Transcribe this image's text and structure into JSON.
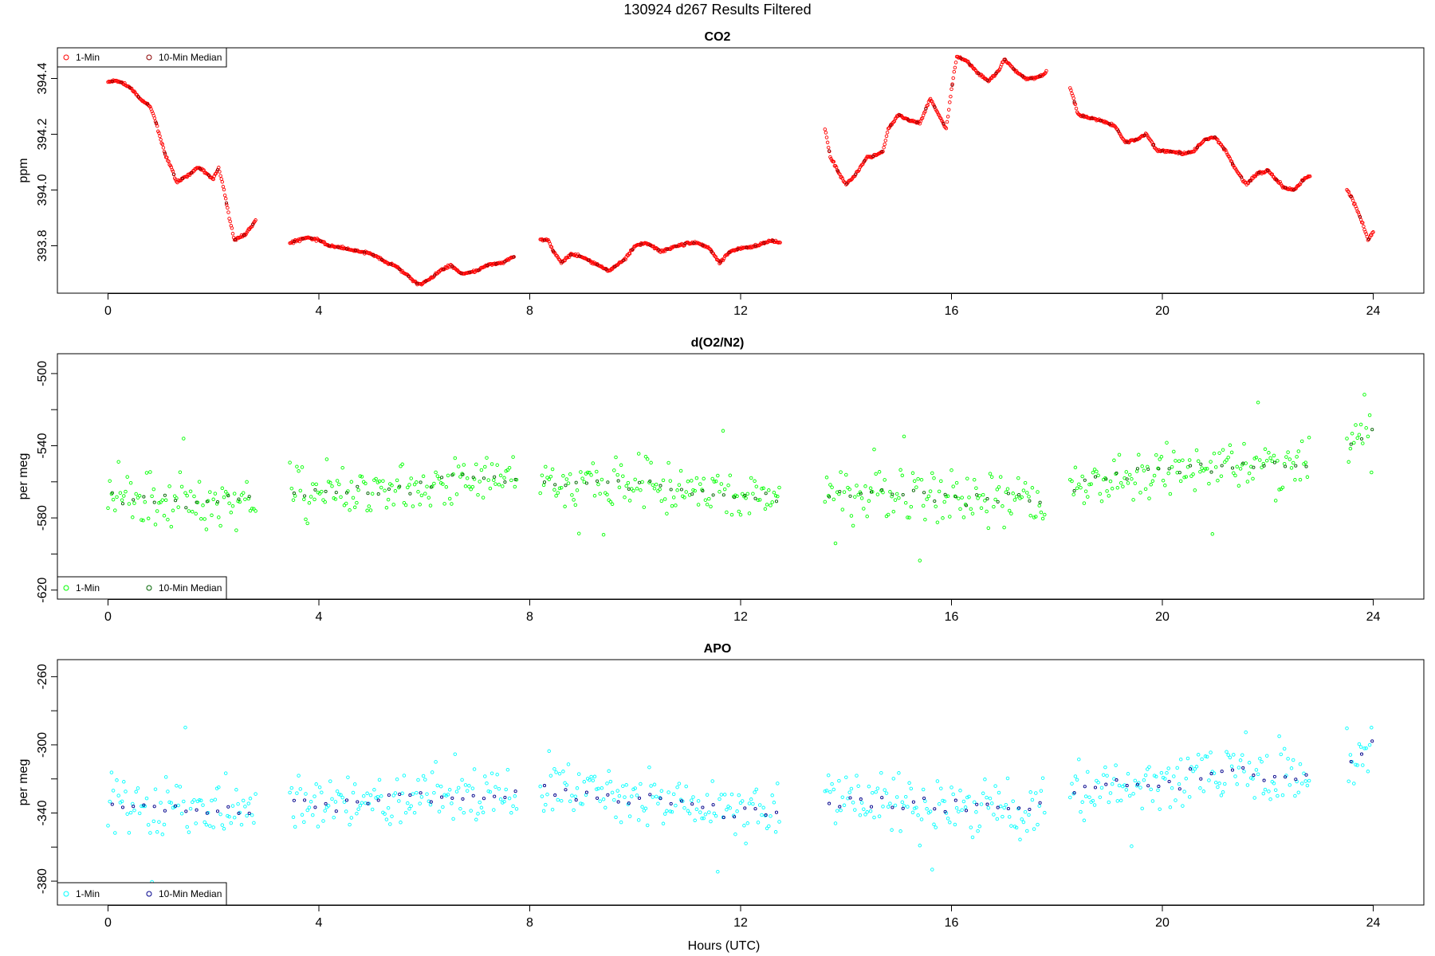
{
  "figure_title": "130924    d267    Results Filtered",
  "x_axis_label": "Hours (UTC)",
  "chart_data": [
    {
      "type": "scatter",
      "title": "CO2",
      "ylabel": "ppm",
      "xlim": [
        -0.96,
        24.96
      ],
      "ylim": [
        393.63,
        394.51
      ],
      "xticks": [
        0,
        4,
        8,
        12,
        16,
        20,
        24
      ],
      "yticks": [
        393.8,
        394.0,
        394.2,
        394.4
      ],
      "ytick_labels": [
        "393.8",
        "394.0",
        "394.2",
        "394.4"
      ],
      "legend": {
        "position": "top-left",
        "entries": [
          "1-Min",
          "10-Min Median"
        ]
      },
      "series": [
        {
          "name": "1-Min",
          "color": "#ff0000",
          "anchors": [
            [
              0.0,
              394.39
            ],
            [
              0.2,
              394.39
            ],
            [
              0.4,
              394.37
            ],
            [
              0.6,
              394.33
            ],
            [
              0.8,
              394.3
            ],
            [
              0.9,
              394.25
            ],
            [
              1.0,
              394.18
            ],
            [
              1.1,
              394.12
            ],
            [
              1.2,
              394.08
            ],
            [
              1.3,
              394.03
            ],
            [
              1.5,
              394.05
            ],
            [
              1.7,
              394.08
            ],
            [
              1.8,
              394.07
            ],
            [
              2.0,
              394.04
            ],
            [
              2.1,
              394.08
            ],
            [
              2.2,
              394.0
            ],
            [
              2.3,
              393.9
            ],
            [
              2.4,
              393.82
            ],
            [
              2.6,
              393.84
            ],
            [
              2.8,
              393.89
            ],
            [
              3.45,
              393.81
            ],
            [
              3.6,
              393.82
            ],
            [
              3.8,
              393.83
            ],
            [
              4.0,
              393.82
            ],
            [
              4.2,
              393.8
            ],
            [
              4.5,
              393.79
            ],
            [
              4.8,
              393.78
            ],
            [
              5.0,
              393.77
            ],
            [
              5.3,
              393.74
            ],
            [
              5.5,
              393.72
            ],
            [
              5.7,
              393.69
            ],
            [
              5.9,
              393.66
            ],
            [
              6.1,
              393.68
            ],
            [
              6.3,
              393.71
            ],
            [
              6.5,
              393.73
            ],
            [
              6.7,
              393.7
            ],
            [
              7.0,
              393.71
            ],
            [
              7.2,
              393.73
            ],
            [
              7.5,
              393.74
            ],
            [
              7.7,
              393.76
            ],
            [
              8.2,
              393.82
            ],
            [
              8.35,
              393.82
            ],
            [
              8.45,
              393.78
            ],
            [
              8.6,
              393.74
            ],
            [
              8.8,
              393.77
            ],
            [
              9.0,
              393.76
            ],
            [
              9.3,
              393.73
            ],
            [
              9.5,
              393.71
            ],
            [
              9.8,
              393.75
            ],
            [
              10.0,
              393.8
            ],
            [
              10.2,
              393.81
            ],
            [
              10.5,
              393.78
            ],
            [
              10.8,
              393.8
            ],
            [
              11.0,
              393.81
            ],
            [
              11.2,
              393.81
            ],
            [
              11.4,
              393.79
            ],
            [
              11.6,
              393.74
            ],
            [
              11.8,
              393.78
            ],
            [
              12.0,
              393.79
            ],
            [
              12.3,
              393.8
            ],
            [
              12.6,
              393.82
            ],
            [
              12.75,
              393.81
            ]
          ],
          "anchors2": [
            [
              13.6,
              394.22
            ],
            [
              13.7,
              394.12
            ],
            [
              13.9,
              394.05
            ],
            [
              14.0,
              394.02
            ],
            [
              14.2,
              394.06
            ],
            [
              14.4,
              394.12
            ],
            [
              14.5,
              394.12
            ],
            [
              14.7,
              394.14
            ],
            [
              14.8,
              394.22
            ],
            [
              15.0,
              394.27
            ],
            [
              15.2,
              394.25
            ],
            [
              15.4,
              394.24
            ],
            [
              15.6,
              394.33
            ],
            [
              15.7,
              394.29
            ],
            [
              15.9,
              394.22
            ],
            [
              16.0,
              394.36
            ],
            [
              16.1,
              394.48
            ],
            [
              16.3,
              394.46
            ],
            [
              16.5,
              394.42
            ],
            [
              16.7,
              394.39
            ],
            [
              16.9,
              394.43
            ],
            [
              17.0,
              394.47
            ],
            [
              17.2,
              394.43
            ],
            [
              17.4,
              394.4
            ],
            [
              17.6,
              394.4
            ],
            [
              17.8,
              394.42
            ],
            [
              18.25,
              394.37
            ],
            [
              18.4,
              394.27
            ],
            [
              18.6,
              394.26
            ],
            [
              18.8,
              394.25
            ],
            [
              19.1,
              394.23
            ],
            [
              19.3,
              394.17
            ],
            [
              19.5,
              394.18
            ],
            [
              19.7,
              394.2
            ],
            [
              19.9,
              394.14
            ],
            [
              20.1,
              394.14
            ],
            [
              20.4,
              394.13
            ],
            [
              20.6,
              394.14
            ],
            [
              20.8,
              394.18
            ],
            [
              21.0,
              394.19
            ],
            [
              21.2,
              394.14
            ],
            [
              21.4,
              394.07
            ],
            [
              21.6,
              394.02
            ],
            [
              21.8,
              394.06
            ],
            [
              22.0,
              394.07
            ],
            [
              22.3,
              394.01
            ],
            [
              22.5,
              394.0
            ],
            [
              22.7,
              394.04
            ],
            [
              22.8,
              394.05
            ],
            [
              23.5,
              394.0
            ],
            [
              23.6,
              393.97
            ],
            [
              23.8,
              393.88
            ],
            [
              23.9,
              393.82
            ],
            [
              24.0,
              393.85
            ]
          ]
        },
        {
          "name": "10-Min Median",
          "color": "#8b0000"
        }
      ]
    },
    {
      "type": "scatter",
      "title": "d(O2/N2)",
      "ylabel": "per meg",
      "xlim": [
        -0.96,
        24.96
      ],
      "ylim": [
        -625,
        -489
      ],
      "xticks": [
        0,
        4,
        8,
        12,
        16,
        20,
        24
      ],
      "yticks": [
        -620,
        -580,
        -540,
        -500
      ],
      "ytick_labels": [
        "-620",
        "-580",
        "-540",
        "-500"
      ],
      "yticks_minor": [
        -600,
        -560,
        -520
      ],
      "legend": {
        "position": "bottom-left",
        "entries": [
          "1-Min",
          "10-Min Median"
        ]
      },
      "series": [
        {
          "name": "1-Min",
          "color": "#00ff00",
          "segments": [
            [
              0.0,
              2.8
            ],
            [
              3.45,
              7.75
            ],
            [
              8.2,
              12.75
            ],
            [
              13.6,
              17.8
            ],
            [
              18.25,
              22.8
            ],
            [
              23.5,
              24.0
            ]
          ],
          "trend": [
            [
              0,
              -568
            ],
            [
              2,
              -572
            ],
            [
              3.5,
              -565
            ],
            [
              5,
              -565
            ],
            [
              7,
              -558
            ],
            [
              8.5,
              -560
            ],
            [
              10,
              -562
            ],
            [
              12.5,
              -570
            ],
            [
              14,
              -565
            ],
            [
              16,
              -568
            ],
            [
              17.8,
              -570
            ],
            [
              18.5,
              -560
            ],
            [
              20,
              -555
            ],
            [
              21.5,
              -550
            ],
            [
              22.8,
              -552
            ],
            [
              23.5,
              -540
            ],
            [
              24,
              -530
            ]
          ],
          "spread": 10
        },
        {
          "name": "10-Min Median",
          "color": "#006400"
        }
      ]
    },
    {
      "type": "scatter",
      "title": "APO",
      "ylabel": "per meg",
      "xlim": [
        -0.96,
        24.96
      ],
      "ylim": [
        -394,
        -250
      ],
      "xticks": [
        0,
        4,
        8,
        12,
        16,
        20,
        24
      ],
      "yticks": [
        -380,
        -340,
        -300,
        -260
      ],
      "ytick_labels": [
        "-380",
        "-340",
        "-300",
        "-260"
      ],
      "yticks_minor": [
        -360,
        -320,
        -280
      ],
      "legend": {
        "position": "bottom-left",
        "entries": [
          "1-Min",
          "10-Min Median"
        ]
      },
      "series": [
        {
          "name": "1-Min",
          "color": "#00ffff",
          "segments": [
            [
              0.0,
              2.8
            ],
            [
              3.45,
              7.75
            ],
            [
              8.2,
              12.75
            ],
            [
              13.6,
              17.8
            ],
            [
              18.25,
              22.8
            ],
            [
              23.5,
              24.0
            ]
          ],
          "trend": [
            [
              0,
              -335
            ],
            [
              2,
              -340
            ],
            [
              3.5,
              -335
            ],
            [
              5,
              -333
            ],
            [
              7,
              -328
            ],
            [
              8.5,
              -328
            ],
            [
              10,
              -332
            ],
            [
              12.5,
              -340
            ],
            [
              14,
              -333
            ],
            [
              16,
              -335
            ],
            [
              17.8,
              -337
            ],
            [
              18.5,
              -325
            ],
            [
              20,
              -322
            ],
            [
              21.5,
              -315
            ],
            [
              22.8,
              -320
            ],
            [
              23.5,
              -315
            ],
            [
              24,
              -298
            ]
          ],
          "spread": 12
        },
        {
          "name": "10-Min Median",
          "color": "#00008b"
        }
      ]
    }
  ]
}
